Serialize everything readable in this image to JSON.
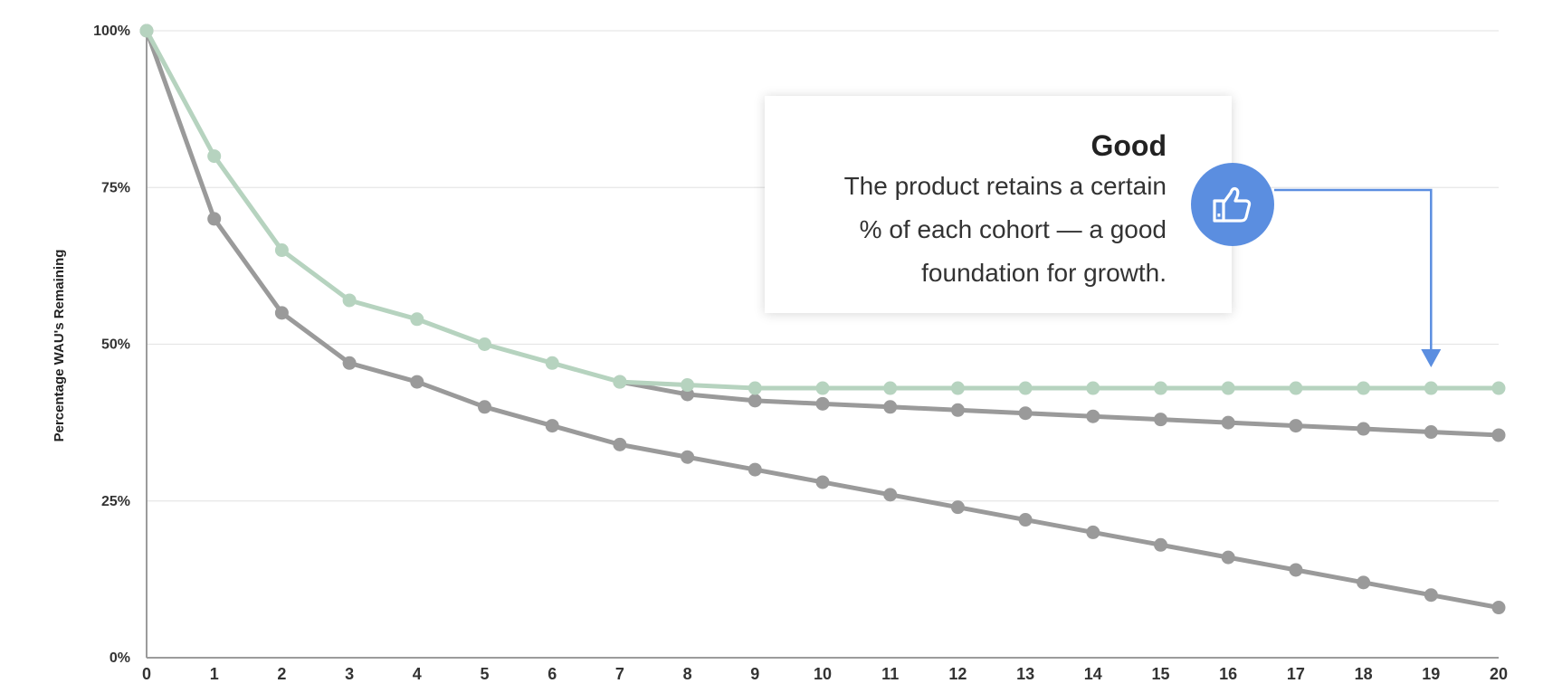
{
  "chart_data": {
    "type": "line",
    "title": "",
    "xlabel": "",
    "ylabel": "Percentage WAU's Remaining",
    "x": [
      0,
      1,
      2,
      3,
      4,
      5,
      6,
      7,
      8,
      9,
      10,
      11,
      12,
      13,
      14,
      15,
      16,
      17,
      18,
      19,
      20
    ],
    "x_tick_labels": [
      "0",
      "1",
      "2",
      "3",
      "4",
      "5",
      "6",
      "7",
      "8",
      "9",
      "10",
      "11",
      "12",
      "13",
      "14",
      "15",
      "16",
      "17",
      "18",
      "19",
      "20"
    ],
    "ylim": [
      0,
      100
    ],
    "xlim": [
      0,
      20
    ],
    "y_ticks": [
      0,
      25,
      50,
      75,
      100
    ],
    "y_tick_labels": [
      "0%",
      "25%",
      "50%",
      "75%",
      "100%"
    ],
    "grid": "horizontal",
    "legend": "none",
    "series": [
      {
        "color": "#9a9a9a",
        "values": [
          100,
          70,
          55,
          47,
          44,
          40,
          37,
          34,
          32,
          30,
          28,
          26,
          24,
          22,
          20,
          18,
          16,
          14,
          12,
          10,
          8
        ]
      },
      {
        "color": "#9a9a9a",
        "values": [
          100,
          70,
          55,
          47,
          44,
          40,
          37,
          34,
          32,
          30,
          28,
          26,
          24,
          22,
          20,
          18,
          16,
          14,
          12,
          10,
          8
        ],
        "partial": [
          null,
          null,
          null,
          null,
          null,
          null,
          null,
          44,
          42,
          41,
          40.5,
          40,
          39.5,
          39,
          38.5,
          38,
          37.5,
          37,
          36.5,
          36,
          35.5
        ]
      },
      {
        "color": "#b6d3bf",
        "values": [
          100,
          80,
          65,
          57,
          54,
          50,
          47,
          44,
          43.5,
          43,
          43,
          43,
          43,
          43,
          43,
          43,
          43,
          43,
          43,
          43,
          43
        ]
      }
    ],
    "annotation": {
      "title": "Good",
      "body_lines": [
        "The product retains a certain",
        "% of each cohort —  a good",
        "foundation for growth."
      ],
      "icon": "thumbs-up-icon",
      "icon_color": "#5b8ee0",
      "arrow_color": "#5b8ee0",
      "arrow_target_x": 19
    }
  }
}
